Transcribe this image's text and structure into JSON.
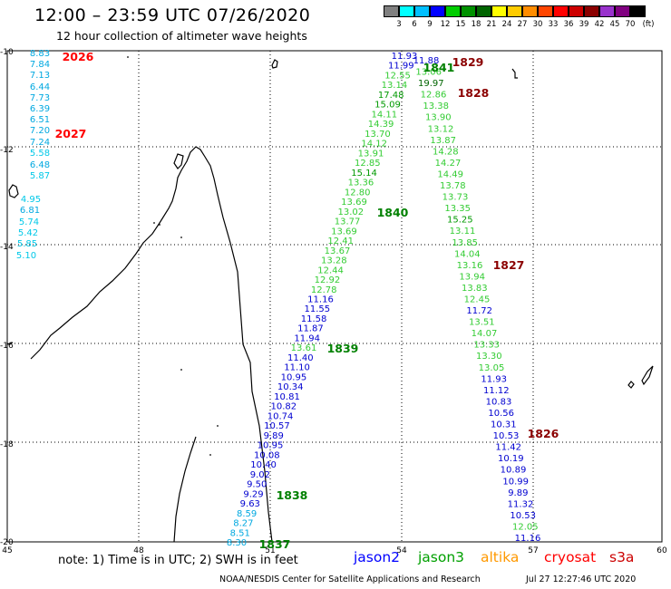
{
  "header": {
    "title": "12:00 – 23:59 UTC 07/26/2020",
    "subtitle": "12 hour collection of altimeter wave heights"
  },
  "colorbar": {
    "ticks": [
      "3",
      "6",
      "9",
      "12",
      "15",
      "18",
      "21",
      "24",
      "27",
      "30",
      "33",
      "36",
      "39",
      "42",
      "45",
      "70"
    ],
    "unit": "(ft)",
    "colors": [
      "#808080",
      "#00ffff",
      "#00bfff",
      "#0000ff",
      "#00cd00",
      "#009100",
      "#006400",
      "#ffff00",
      "#ffcc00",
      "#ff8c00",
      "#ff4500",
      "#ff0000",
      "#cd0000",
      "#8b0000",
      "#9932cc",
      "#800080",
      "#000000"
    ]
  },
  "axes": {
    "lat_labels": [
      "-10",
      "-12",
      "-14",
      "-16",
      "-18",
      "-20"
    ],
    "lon_labels": [
      "45",
      "48",
      "51",
      "54",
      "57",
      "60"
    ]
  },
  "tracks": [
    {
      "values": [
        "8.83",
        "7.84",
        "7.13",
        "6.44",
        "7.73",
        "6.39",
        "6.51",
        "7.20",
        "7.24",
        "5.58",
        "6.48",
        "5.87",
        "4.95",
        "6.81",
        "5.74",
        "5.42",
        "5.85",
        "5.10"
      ]
    },
    {
      "values": [
        "11.93",
        "11.99",
        "12.55",
        "13.14",
        "17.48",
        "15.09",
        "14.11",
        "14.39",
        "13.70",
        "14.12",
        "13.91",
        "12.85",
        "15.14",
        "13.36",
        "12.80",
        "13.69",
        "13.02",
        "13.77",
        "13.69",
        "12.41",
        "13.67",
        "13.28",
        "12.44",
        "12.92",
        "12.78",
        "11.16",
        "11.55",
        "11.58",
        "11.87",
        "11.94",
        "13.61",
        "11.40",
        "11.10",
        "10.95",
        "10.34",
        "10.81",
        "10.82",
        "10.74",
        "10.57",
        "9.89",
        "10.95",
        "10.08",
        "10.40",
        "9.02",
        "9.50",
        "9.29",
        "9.63",
        "8.59",
        "8.27",
        "8.51",
        "8.30"
      ]
    },
    {
      "values": [
        "11.88",
        "13.06",
        "19.97",
        "12.86",
        "13.38",
        "13.90",
        "13.12",
        "13.87",
        "14.28",
        "14.27",
        "14.49",
        "13.78",
        "13.73",
        "13.35",
        "15.25",
        "13.11",
        "13.85",
        "14.04",
        "13.16",
        "13.94",
        "13.83",
        "12.45",
        "11.72",
        "13.51",
        "14.07",
        "13.33",
        "13.30",
        "13.05",
        "11.93",
        "11.12",
        "10.83",
        "10.56",
        "10.31",
        "10.53",
        "11.42",
        "10.19",
        "10.89",
        "10.99",
        "9.89",
        "11.32",
        "10.53",
        "12.05",
        "11.16"
      ]
    }
  ],
  "rev_labels": [
    "2026",
    "2027",
    "1829",
    "1841",
    "1828",
    "1840",
    "1827",
    "1839",
    "1826",
    "1838",
    "1837"
  ],
  "note": "note: 1) Time is in UTC; 2) SWH is in feet",
  "legend": [
    {
      "name": "jason2",
      "color": "#0000ff"
    },
    {
      "name": "jason3",
      "color": "#00a000"
    },
    {
      "name": "altika",
      "color": "#ff9900"
    },
    {
      "name": "cryosat",
      "color": "#ff0000"
    },
    {
      "name": "s3a",
      "color": "#cc0000"
    }
  ],
  "footer": {
    "credit": "NOAA/NESDIS Center for Satellite Applications and Research",
    "stamp": "Jul 27 12:27:46 UTC 2020"
  }
}
